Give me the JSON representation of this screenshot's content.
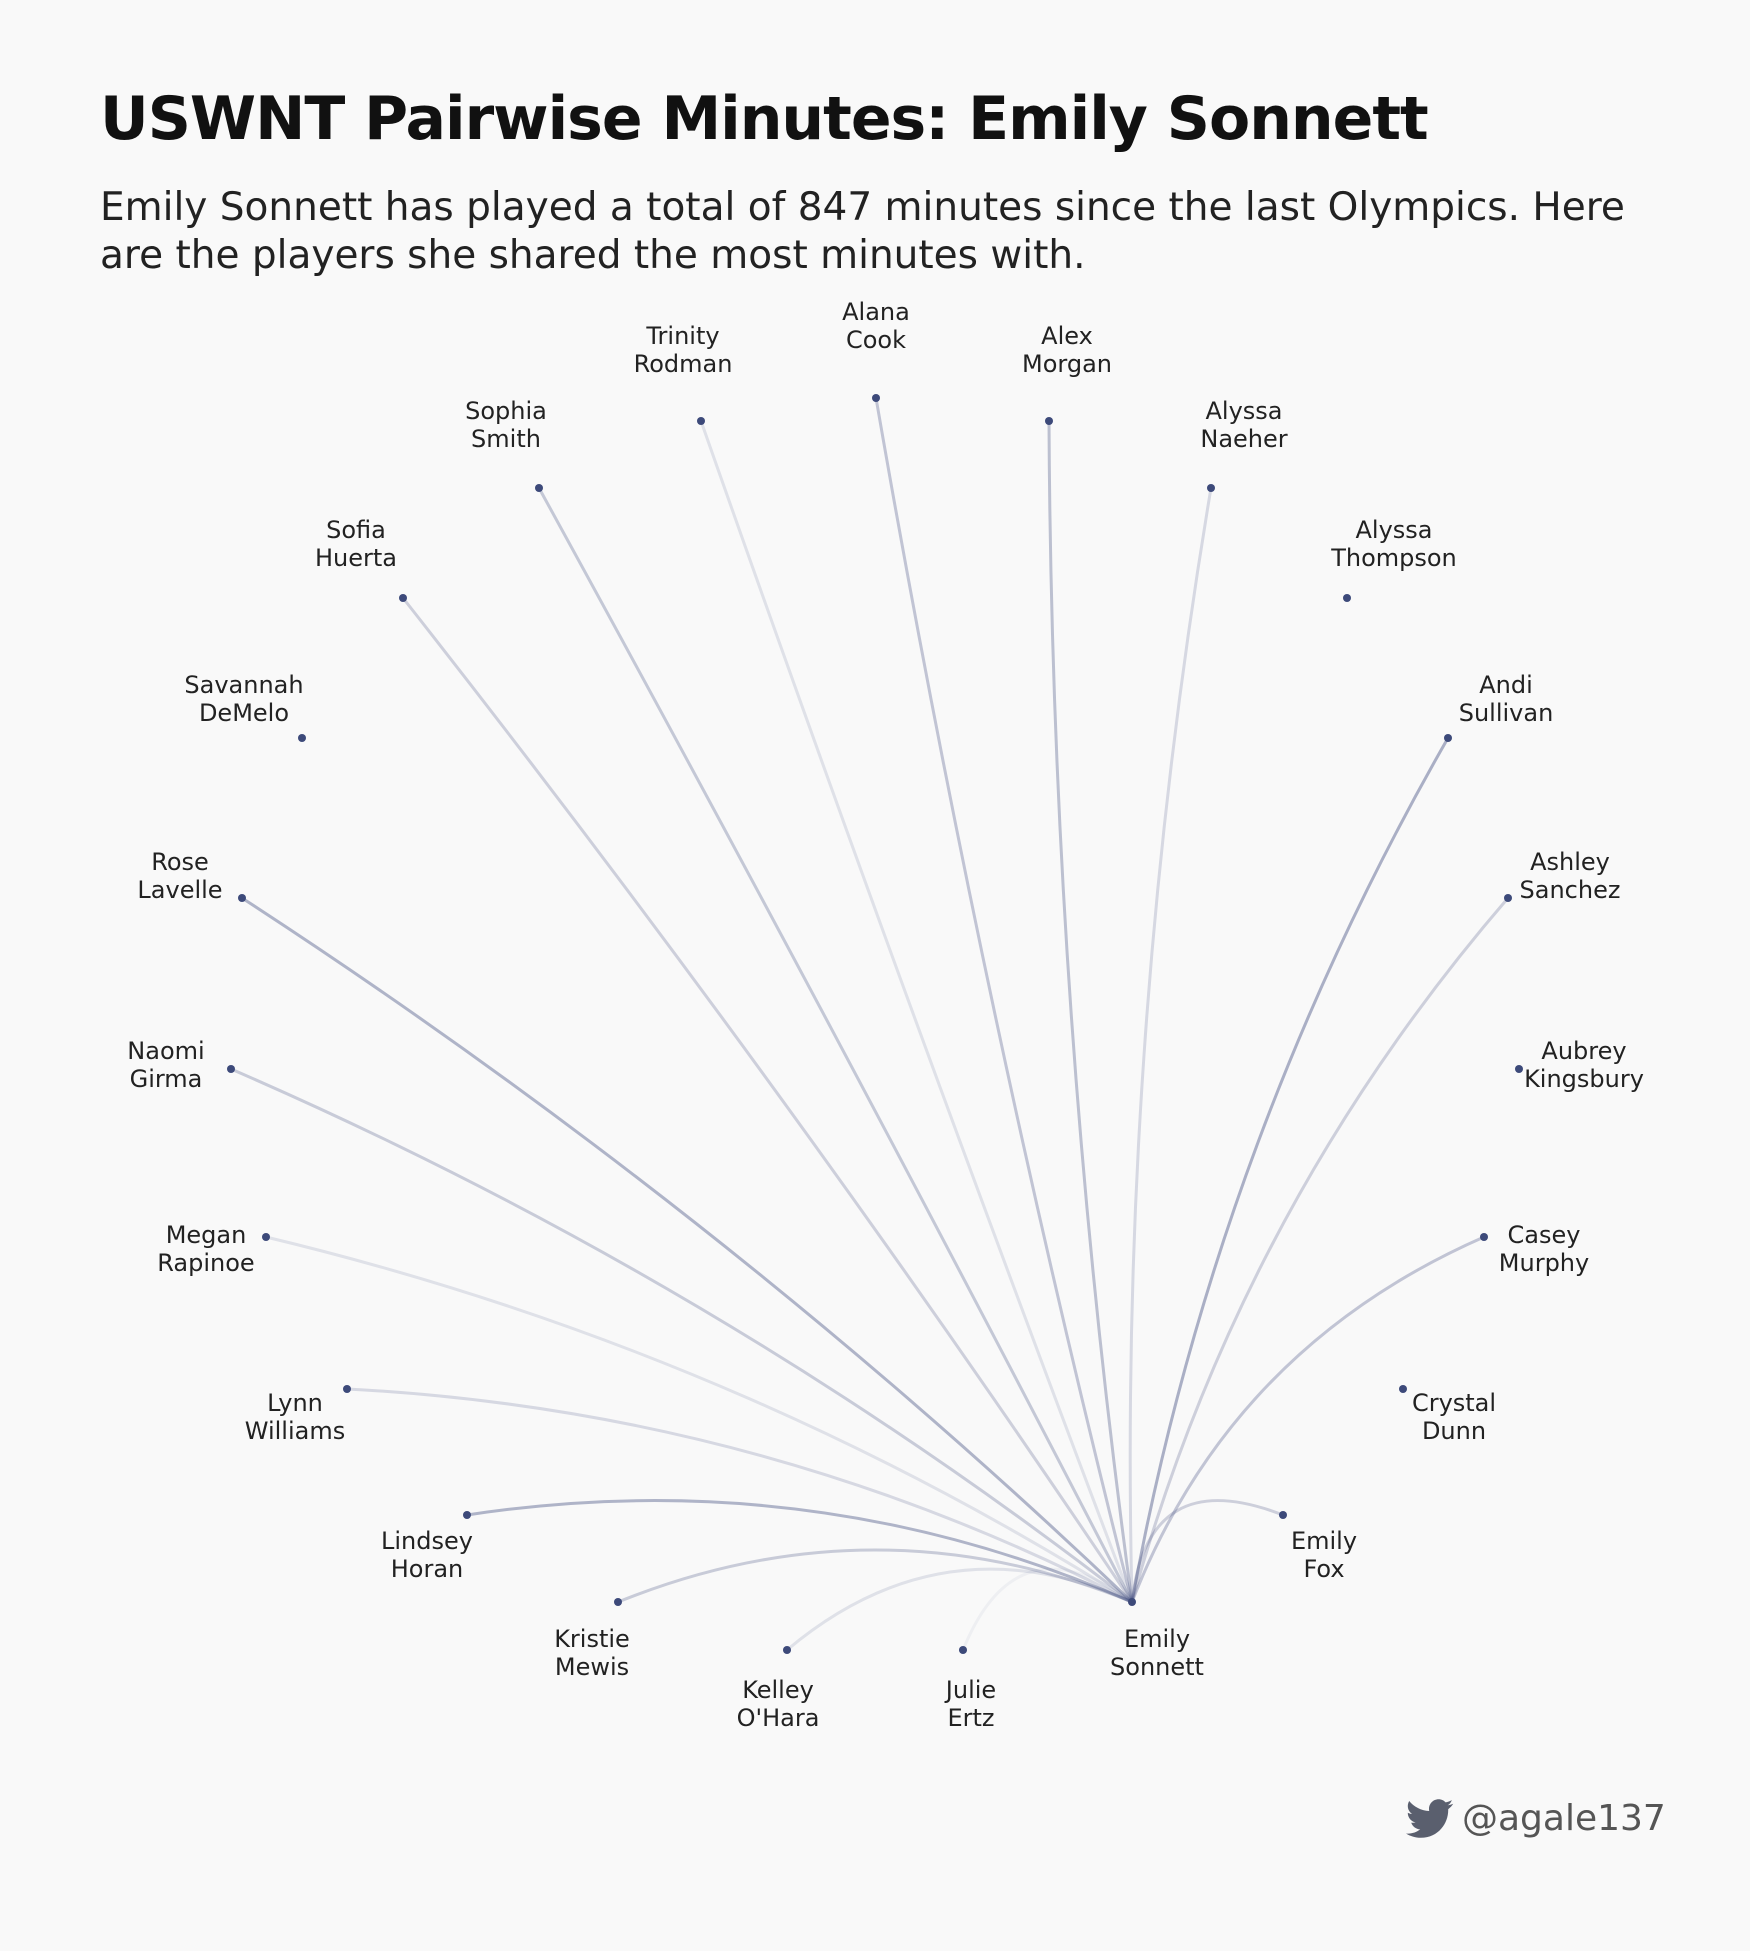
{
  "title": "USWNT Pairwise Minutes: Emily Sonnett",
  "subtitle": "Emily Sonnett has played a total of 847 minutes since the last Olympics. Here are the players she shared the most minutes with.",
  "credit": {
    "handle": "@agale137",
    "icon": "twitter-bird-icon"
  },
  "colors": {
    "background": "#f9f9f9",
    "node": "#3d4a7a",
    "link": "#4a5585"
  },
  "focus_player": "Emily Sonnett",
  "nodes": [
    {
      "id": "alana-cook",
      "label": [
        "Alana",
        "Cook"
      ],
      "link_strength": 0.32
    },
    {
      "id": "alex-morgan",
      "label": [
        "Alex",
        "Morgan"
      ],
      "link_strength": 0.35
    },
    {
      "id": "alyssa-naeher",
      "label": [
        "Alyssa",
        "Naeher"
      ],
      "link_strength": 0.2
    },
    {
      "id": "alyssa-thompson",
      "label": [
        "Alyssa",
        "Thompson"
      ],
      "link_strength": 0
    },
    {
      "id": "andi-sullivan",
      "label": [
        "Andi",
        "Sullivan"
      ],
      "link_strength": 0.45
    },
    {
      "id": "ashley-sanchez",
      "label": [
        "Ashley",
        "Sanchez"
      ],
      "link_strength": 0.25
    },
    {
      "id": "aubrey-kingsbury",
      "label": [
        "Aubrey",
        "Kingsbury"
      ],
      "link_strength": 0
    },
    {
      "id": "casey-murphy",
      "label": [
        "Casey",
        "Murphy"
      ],
      "link_strength": 0.32
    },
    {
      "id": "crystal-dunn",
      "label": [
        "Crystal",
        "Dunn"
      ],
      "link_strength": 0
    },
    {
      "id": "emily-fox",
      "label": [
        "Emily",
        "Fox"
      ],
      "link_strength": 0.25
    },
    {
      "id": "emily-sonnett",
      "label": [
        "Emily",
        "Sonnett"
      ],
      "link_strength": 0
    },
    {
      "id": "julie-ertz",
      "label": [
        "Julie",
        "Ertz"
      ],
      "link_strength": 0.06
    },
    {
      "id": "kelley-ohara",
      "label": [
        "Kelley",
        "O'Hara"
      ],
      "link_strength": 0.15
    },
    {
      "id": "kristie-mewis",
      "label": [
        "Kristie",
        "Mewis"
      ],
      "link_strength": 0.28
    },
    {
      "id": "lindsey-horan",
      "label": [
        "Lindsey",
        "Horan"
      ],
      "link_strength": 0.42
    },
    {
      "id": "lynn-williams",
      "label": [
        "Lynn",
        "Williams"
      ],
      "link_strength": 0.2
    },
    {
      "id": "megan-rapinoe",
      "label": [
        "Megan",
        "Rapinoe"
      ],
      "link_strength": 0.15
    },
    {
      "id": "naomi-girma",
      "label": [
        "Naomi",
        "Girma"
      ],
      "link_strength": 0.28
    },
    {
      "id": "rose-lavelle",
      "label": [
        "Rose",
        "Lavelle"
      ],
      "link_strength": 0.42
    },
    {
      "id": "savannah-demelo",
      "label": [
        "Savannah",
        "DeMelo"
      ],
      "link_strength": 0
    },
    {
      "id": "sofia-huerta",
      "label": [
        "Sofia",
        "Huerta"
      ],
      "link_strength": 0.25
    },
    {
      "id": "sophia-smith",
      "label": [
        "Sophia",
        "Smith"
      ],
      "link_strength": 0.3
    },
    {
      "id": "trinity-rodman",
      "label": [
        "Trinity",
        "Rodman"
      ],
      "link_strength": 0.15
    }
  ]
}
